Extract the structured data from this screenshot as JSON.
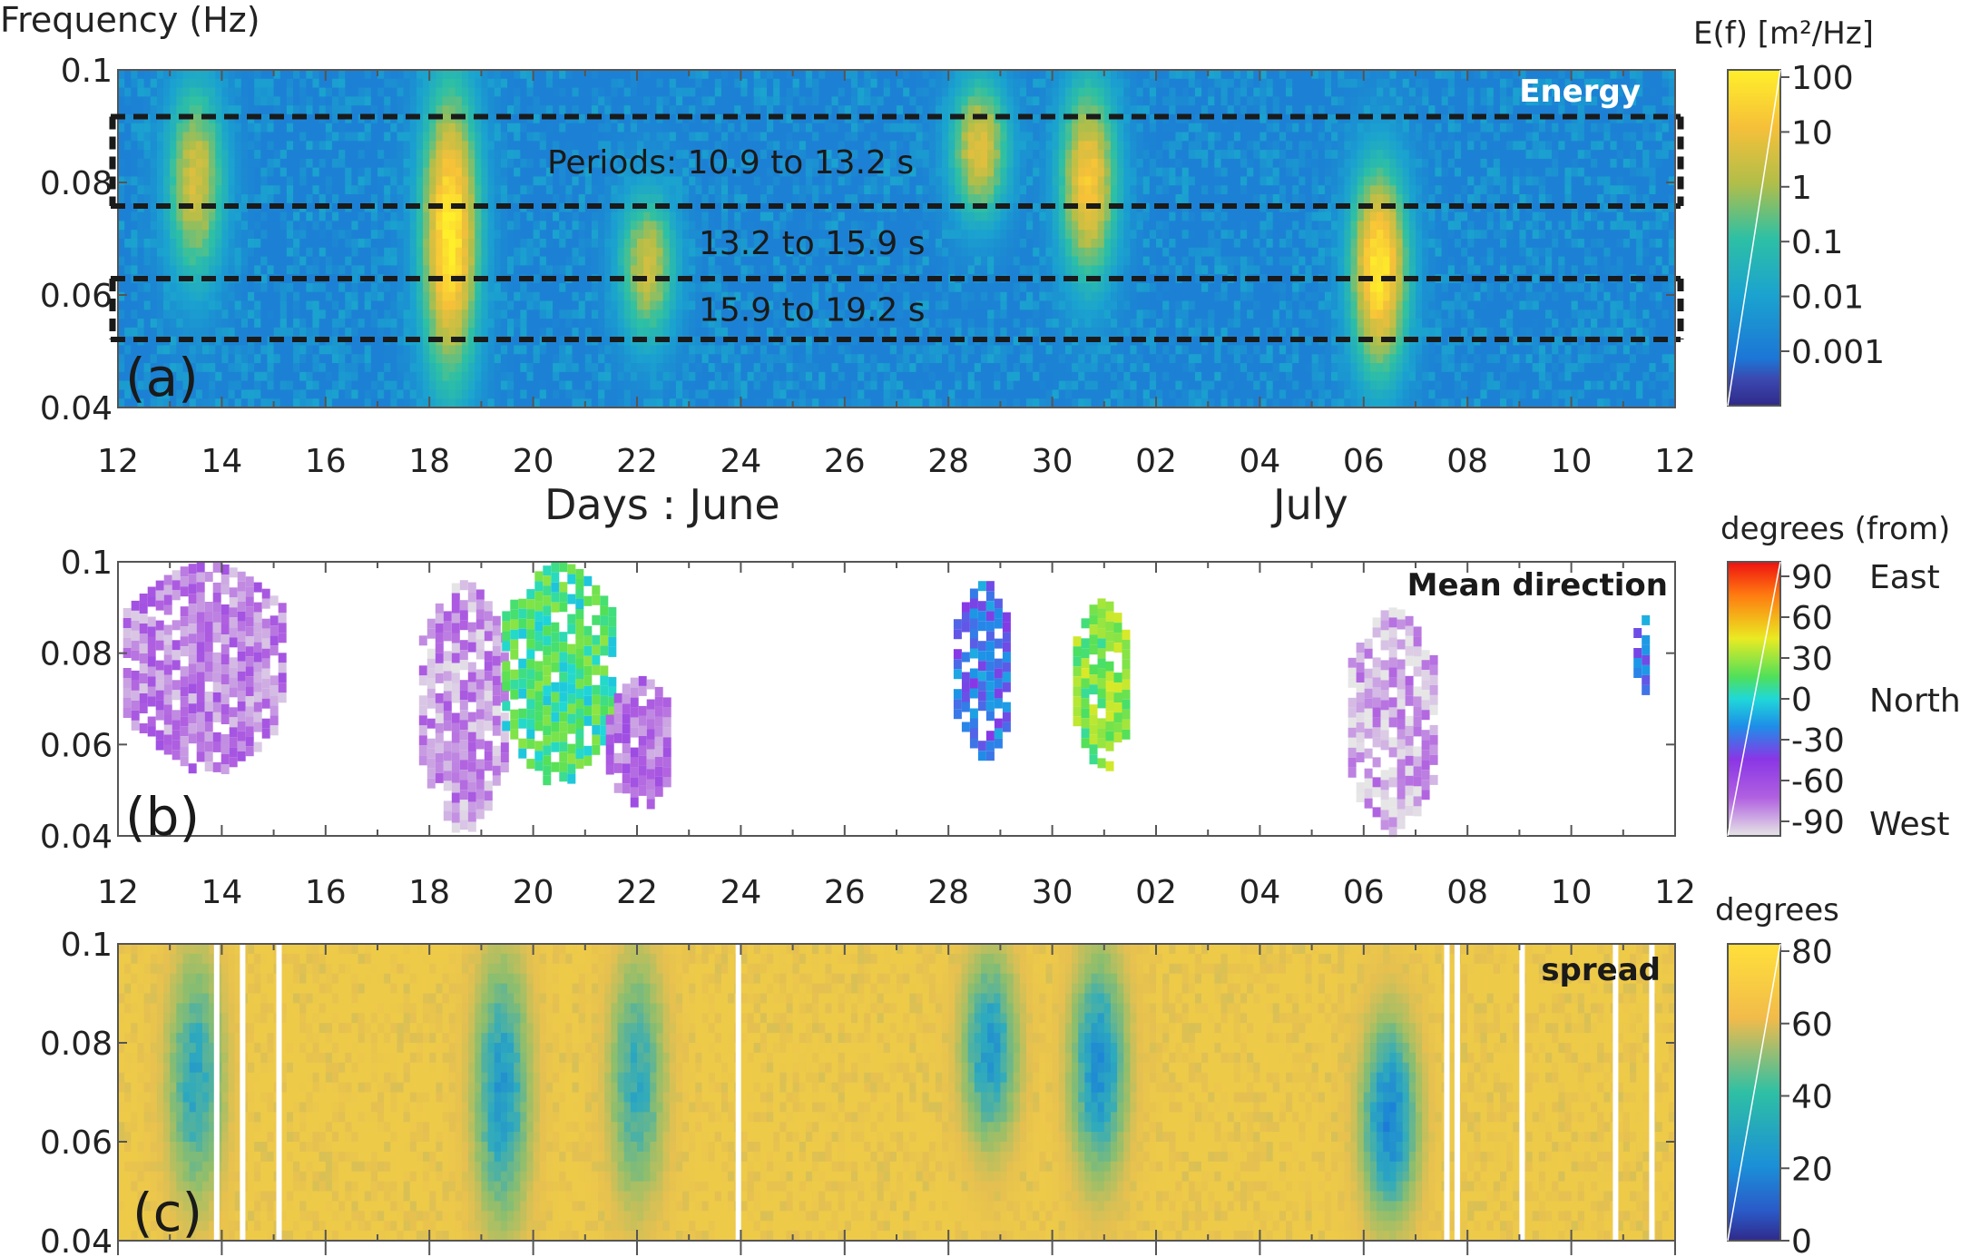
{
  "figure": {
    "yaxis_title": "Frequency (Hz)",
    "xaxis_month_1": "Days : June",
    "xaxis_month_2": "July",
    "x_tick_labels": [
      "12",
      "14",
      "16",
      "18",
      "20",
      "22",
      "24",
      "26",
      "28",
      "30",
      "02",
      "04",
      "06",
      "08",
      "10",
      "12"
    ]
  },
  "chart_data": [
    {
      "type": "heatmap",
      "panel": "(a)",
      "title": "Energy",
      "ylabel": "Frequency (Hz)",
      "xlabel": "Days : June / July",
      "ylim": [
        0.04,
        0.1
      ],
      "xlim": [
        "June 12",
        "July 12"
      ],
      "y_ticks": [
        "0.1",
        "0.08",
        "0.06",
        "0.04"
      ],
      "colorbar": {
        "label": "E(f) [m²/Hz]",
        "scale": "log",
        "ticks": [
          "100",
          "10",
          "1",
          "0.1",
          "0.01",
          "0.001"
        ]
      },
      "bands": [
        {
          "label": "Periods: 10.9 to 13.2 s",
          "f_low": 0.0758,
          "f_high": 0.0917
        },
        {
          "label": "13.2 to 15.9 s",
          "f_low": 0.0629,
          "f_high": 0.0758
        },
        {
          "label": "15.9 to 19.2 s",
          "f_low": 0.0521,
          "f_high": 0.0629
        }
      ],
      "events": [
        {
          "day": 18.4,
          "f_low": 0.042,
          "f_high": 0.1,
          "log_energy_peak": 2.0
        },
        {
          "day": 13.5,
          "f_low": 0.06,
          "f_high": 0.1,
          "log_energy_peak": 0.6
        },
        {
          "day": 22.2,
          "f_low": 0.05,
          "f_high": 0.08,
          "log_energy_peak": 0.5
        },
        {
          "day": 28.6,
          "f_low": 0.072,
          "f_high": 0.1,
          "log_energy_peak": 0.8
        },
        {
          "day": 30.7,
          "f_low": 0.06,
          "f_high": 0.1,
          "log_energy_peak": 1.2
        },
        {
          "day": 36.3,
          "f_low": 0.044,
          "f_high": 0.085,
          "log_energy_peak": 1.9
        }
      ]
    },
    {
      "type": "heatmap",
      "panel": "(b)",
      "title": "Mean direction",
      "ylim": [
        0.04,
        0.1
      ],
      "y_ticks": [
        "0.1",
        "0.08",
        "0.06",
        "0.04"
      ],
      "colorbar": {
        "label": "degrees (from)",
        "ticks": [
          "90",
          "60",
          "30",
          "0",
          "-30",
          "-60",
          "-90"
        ],
        "side_labels": [
          "East",
          "North",
          "West"
        ]
      },
      "events": [
        {
          "day_start": 12.1,
          "day_end": 15.2,
          "f_low": 0.055,
          "f_high": 0.1,
          "direction_deg": -70
        },
        {
          "day_start": 17.8,
          "day_end": 19.4,
          "f_low": 0.042,
          "f_high": 0.096,
          "direction_deg": -75
        },
        {
          "day_start": 19.4,
          "day_end": 21.5,
          "f_low": 0.052,
          "f_high": 0.1,
          "direction_deg": 10
        },
        {
          "day_start": 21.4,
          "day_end": 22.6,
          "f_low": 0.047,
          "f_high": 0.075,
          "direction_deg": -65
        },
        {
          "day_start": 28.1,
          "day_end": 29.2,
          "f_low": 0.058,
          "f_high": 0.096,
          "direction_deg": -25
        },
        {
          "day_start": 30.4,
          "day_end": 31.4,
          "f_low": 0.055,
          "f_high": 0.092,
          "direction_deg": 22
        },
        {
          "day_start": 35.7,
          "day_end": 37.3,
          "f_low": 0.041,
          "f_high": 0.09,
          "direction_deg": -80
        },
        {
          "day_start": 41.2,
          "day_end": 41.4,
          "f_low": 0.07,
          "f_high": 0.09,
          "direction_deg": -25
        }
      ]
    },
    {
      "type": "heatmap",
      "panel": "(c)",
      "title": "spread",
      "ylim": [
        0.04,
        0.1
      ],
      "y_ticks": [
        "0.1",
        "0.08",
        "0.06",
        "0.04"
      ],
      "colorbar": {
        "label": "degrees",
        "ticks": [
          "80",
          "60",
          "40",
          "20",
          "0"
        ]
      },
      "background_spread_deg": 68,
      "low_spread_events": [
        {
          "day": 13.5,
          "f_low": 0.045,
          "f_high": 0.1,
          "spread_deg": 30
        },
        {
          "day": 19.4,
          "f_low": 0.04,
          "f_high": 0.1,
          "spread_deg": 25
        },
        {
          "day": 22.0,
          "f_low": 0.045,
          "f_high": 0.1,
          "spread_deg": 32
        },
        {
          "day": 28.8,
          "f_low": 0.057,
          "f_high": 0.1,
          "spread_deg": 25
        },
        {
          "day": 30.9,
          "f_low": 0.05,
          "f_high": 0.1,
          "spread_deg": 22
        },
        {
          "day": 36.5,
          "f_low": 0.042,
          "f_high": 0.087,
          "spread_deg": 18
        }
      ]
    }
  ]
}
